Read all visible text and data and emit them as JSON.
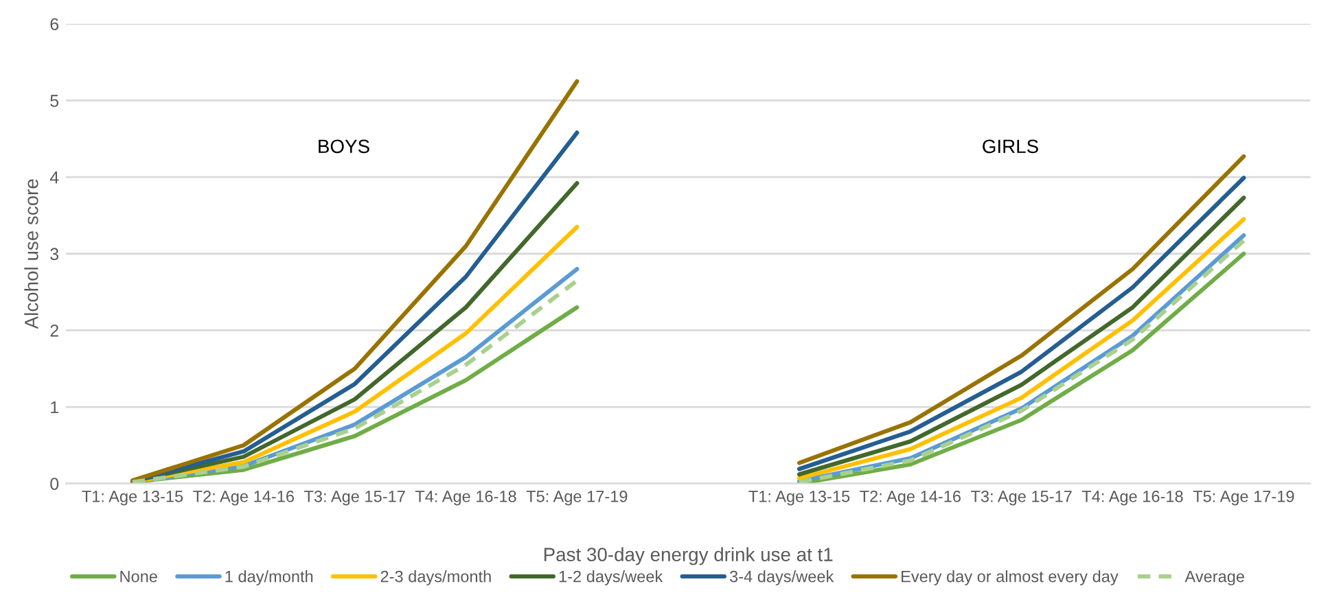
{
  "chart_data": {
    "type": "line",
    "ylabel": "Alcohol use score",
    "xlabel": "Past 30-day energy drink use at t1",
    "categories": [
      "T1: Age 13-15",
      "T2: Age 14-16",
      "T3: Age 15-17",
      "T4: Age 16-18",
      "T5: Age 17-19",
      null,
      "T1: Age 13-15",
      "T2: Age 14-16",
      "T3: Age 15-17",
      "T4: Age 16-18",
      "T5: Age 17-19"
    ],
    "series": [
      {
        "name": "None",
        "color": "#70ad47",
        "values": [
          0.02,
          0.18,
          0.62,
          1.35,
          2.3,
          null,
          0.0,
          0.25,
          0.83,
          1.74,
          3.0
        ]
      },
      {
        "name": "1 day/month",
        "color": "#5b9bd5",
        "values": [
          0.02,
          0.23,
          0.77,
          1.65,
          2.8,
          null,
          0.03,
          0.33,
          0.98,
          1.93,
          3.24
        ]
      },
      {
        "name": "2-3 days/month",
        "color": "#ffc000",
        "values": [
          0.02,
          0.28,
          0.94,
          1.96,
          3.35,
          null,
          0.07,
          0.45,
          1.12,
          2.13,
          3.45
        ]
      },
      {
        "name": "1-2 days/week",
        "color": "#43682b",
        "values": [
          0.03,
          0.35,
          1.1,
          2.3,
          3.92,
          null,
          0.12,
          0.55,
          1.29,
          2.3,
          3.73
        ]
      },
      {
        "name": "3-4 days/week",
        "color": "#255e91",
        "values": [
          0.03,
          0.42,
          1.3,
          2.7,
          4.58,
          null,
          0.19,
          0.68,
          1.46,
          2.56,
          3.99
        ]
      },
      {
        "name": "Every day or almost every day",
        "color": "#997300",
        "values": [
          0.04,
          0.5,
          1.5,
          3.1,
          5.25,
          null,
          0.27,
          0.8,
          1.67,
          2.8,
          4.27
        ]
      },
      {
        "name": "Average",
        "color": "#a9d18e",
        "line_style": "dashed",
        "values": [
          0.02,
          0.22,
          0.72,
          1.55,
          2.65,
          null,
          0.02,
          0.3,
          0.95,
          1.88,
          3.17
        ]
      }
    ],
    "annotations": [
      "BOYS",
      "GIRLS"
    ],
    "ylim": [
      0,
      6
    ],
    "yticks": [
      0,
      1,
      2,
      3,
      4,
      5,
      6
    ],
    "grid": "y",
    "legend": "bottom",
    "marker": "none",
    "line_style": "solid"
  }
}
